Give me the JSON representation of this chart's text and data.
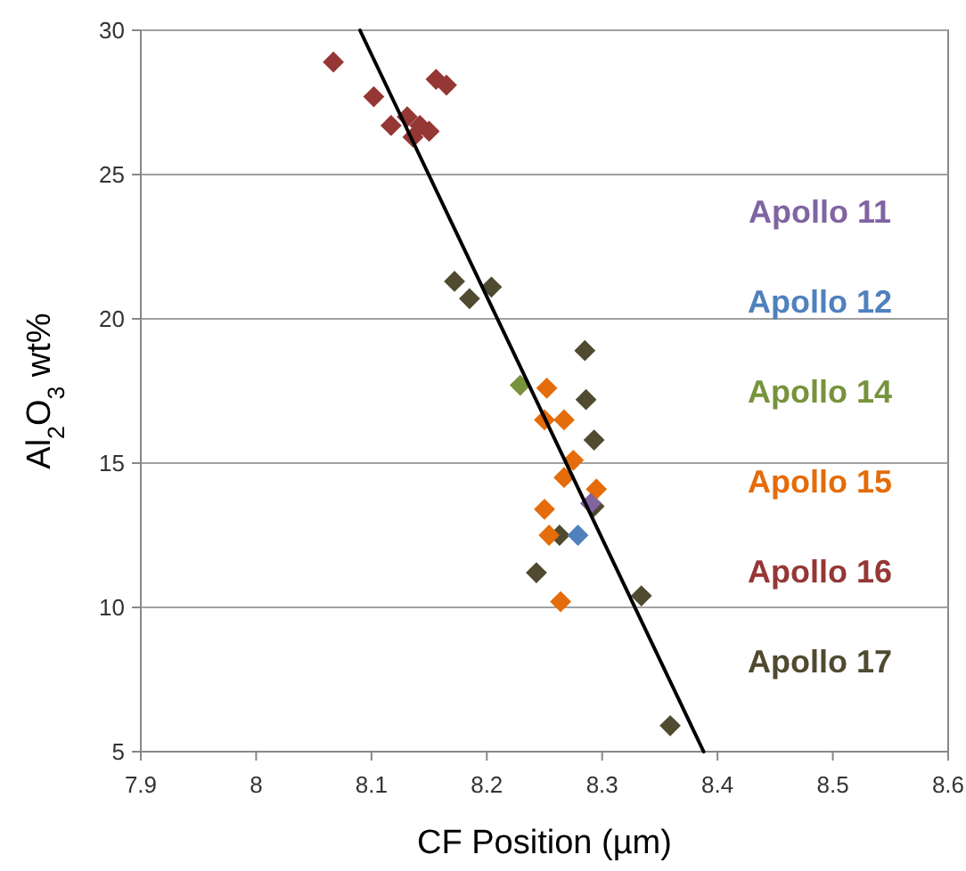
{
  "chart_data": {
    "type": "scatter",
    "xlabel": "CF Position (µm)",
    "ylabel": "Al$_{2}$O$_{3}$ wt%",
    "xlim": [
      7.9,
      8.6
    ],
    "ylim": [
      5,
      30
    ],
    "xticks": [
      7.9,
      8,
      8.1,
      8.2,
      8.3,
      8.4,
      8.5,
      8.6
    ],
    "yticks": [
      5,
      10,
      15,
      20,
      25,
      30
    ],
    "grid": "y",
    "legend": "right",
    "marker": "diamond",
    "series": [
      {
        "name": "Apollo 11",
        "color": "#8064a2",
        "x": [
          8.29
        ],
        "values": [
          13.6
        ]
      },
      {
        "name": "Apollo 12",
        "color": "#4f81bd",
        "x": [
          8.279
        ],
        "values": [
          12.5
        ]
      },
      {
        "name": "Apollo 14",
        "color": "#77933c",
        "x": [
          8.229
        ],
        "values": [
          17.7
        ]
      },
      {
        "name": "Apollo 15",
        "color": "#e46c0a",
        "x": [
          8.252,
          8.25,
          8.267,
          8.275,
          8.267,
          8.295,
          8.25,
          8.254,
          8.264
        ],
        "values": [
          17.6,
          16.5,
          16.5,
          15.1,
          14.5,
          14.1,
          13.4,
          12.5,
          10.2
        ]
      },
      {
        "name": "Apollo 16",
        "color": "#953735",
        "x": [
          8.067,
          8.102,
          8.117,
          8.131,
          8.136,
          8.142,
          8.15,
          8.156,
          8.165
        ],
        "values": [
          28.9,
          27.7,
          26.7,
          27.0,
          26.3,
          26.7,
          26.5,
          28.3,
          28.1
        ]
      },
      {
        "name": "Apollo 17",
        "color": "#4f4a30",
        "x": [
          8.172,
          8.185,
          8.204,
          8.285,
          8.286,
          8.293,
          8.293,
          8.263,
          8.243,
          8.334,
          8.359
        ],
        "values": [
          21.3,
          20.7,
          21.1,
          18.9,
          17.2,
          15.8,
          13.5,
          12.5,
          11.2,
          10.4,
          5.9
        ]
      },
      {
        "type": "line",
        "color": "#000000",
        "marker": "none",
        "x": [
          8.09,
          8.388
        ],
        "values": [
          30,
          5
        ]
      }
    ]
  }
}
